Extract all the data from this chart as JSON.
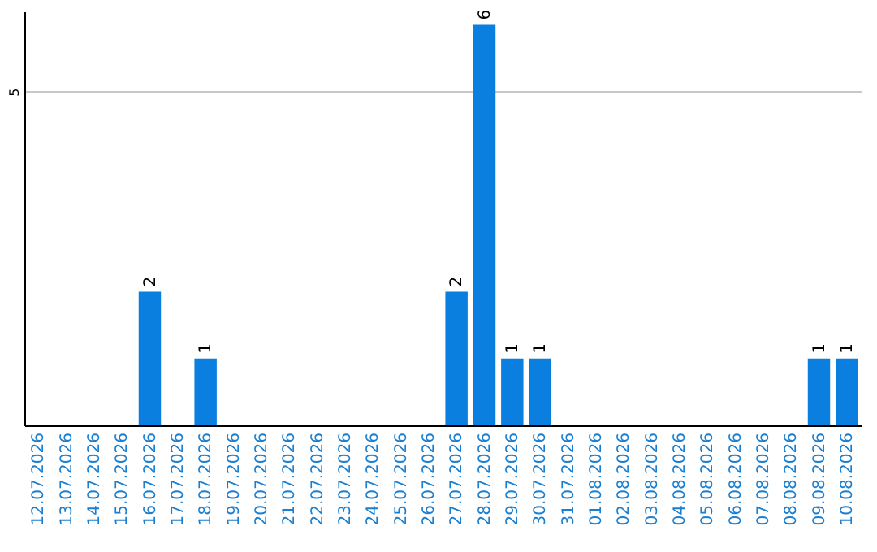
{
  "chart_data": {
    "type": "bar",
    "categories": [
      "12.07.2026",
      "13.07.2026",
      "14.07.2026",
      "15.07.2026",
      "16.07.2026",
      "17.07.2026",
      "18.07.2026",
      "19.07.2026",
      "20.07.2026",
      "21.07.2026",
      "22.07.2026",
      "23.07.2026",
      "24.07.2026",
      "25.07.2026",
      "26.07.2026",
      "27.07.2026",
      "28.07.2026",
      "29.07.2026",
      "30.07.2026",
      "31.07.2026",
      "01.08.2026",
      "02.08.2026",
      "03.08.2026",
      "04.08.2026",
      "05.08.2026",
      "06.08.2026",
      "07.08.2026",
      "08.08.2026",
      "09.08.2026",
      "10.08.2026"
    ],
    "values": [
      0,
      0,
      0,
      0,
      2,
      0,
      1,
      0,
      0,
      0,
      0,
      0,
      0,
      0,
      0,
      2,
      6,
      1,
      1,
      0,
      0,
      0,
      0,
      0,
      0,
      0,
      0,
      0,
      1,
      1
    ],
    "value_labels": [
      null,
      null,
      null,
      null,
      "2",
      null,
      "1",
      null,
      null,
      null,
      null,
      null,
      null,
      null,
      null,
      "2",
      "6",
      "1",
      "1",
      null,
      null,
      null,
      null,
      null,
      null,
      null,
      null,
      null,
      "1",
      "1"
    ],
    "color": "#0a7fe0",
    "ylim": [
      0,
      6.2
    ],
    "yticks": [
      5
    ],
    "grid": "y"
  }
}
